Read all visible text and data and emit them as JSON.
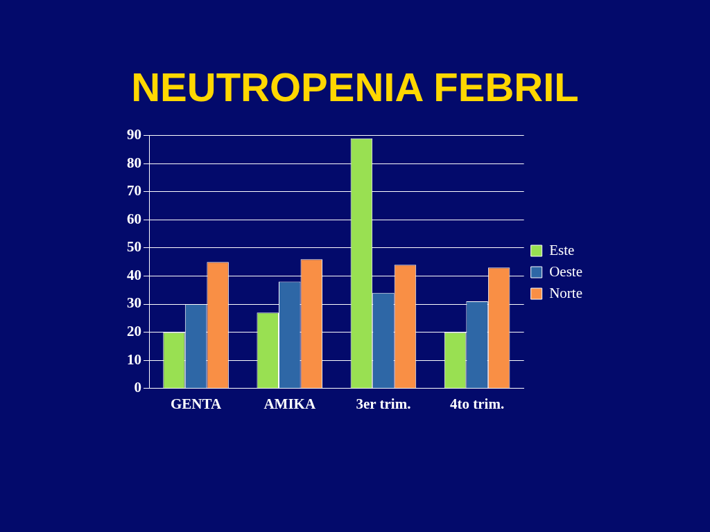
{
  "chart_data": {
    "type": "bar",
    "title": "NEUTROPENIA FEBRIL",
    "categories": [
      "GENTA",
      "AMIKA",
      "3er trim.",
      "4to trim."
    ],
    "series": [
      {
        "name": "Este",
        "color": "#99e052",
        "values": [
          20,
          27,
          89,
          20
        ]
      },
      {
        "name": "Oeste",
        "color": "#2e67a6",
        "values": [
          30,
          38,
          34,
          31
        ]
      },
      {
        "name": "Norte",
        "color": "#f98f45",
        "values": [
          45,
          46,
          44,
          43
        ]
      }
    ],
    "ylim": [
      0,
      90
    ],
    "yticks": [
      0,
      10,
      20,
      30,
      40,
      50,
      60,
      70,
      80,
      90
    ],
    "grid": "y",
    "legend": "right"
  }
}
